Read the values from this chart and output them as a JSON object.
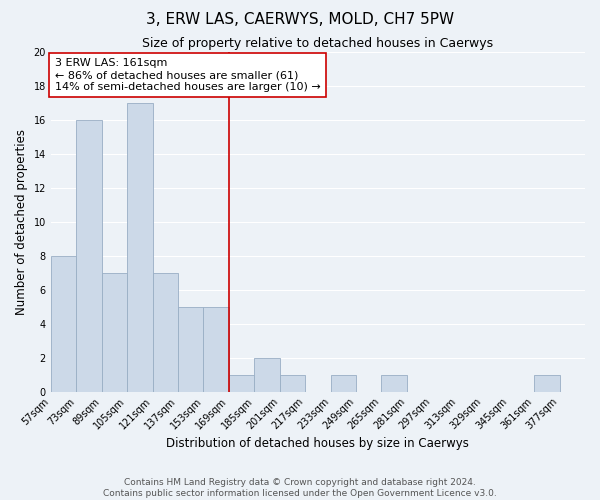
{
  "title": "3, ERW LAS, CAERWYS, MOLD, CH7 5PW",
  "subtitle": "Size of property relative to detached houses in Caerwys",
  "xlabel": "Distribution of detached houses by size in Caerwys",
  "ylabel": "Number of detached properties",
  "footer_line1": "Contains HM Land Registry data © Crown copyright and database right 2024.",
  "footer_line2": "Contains public sector information licensed under the Open Government Licence v3.0.",
  "bin_labels": [
    "57sqm",
    "73sqm",
    "89sqm",
    "105sqm",
    "121sqm",
    "137sqm",
    "153sqm",
    "169sqm",
    "185sqm",
    "201sqm",
    "217sqm",
    "233sqm",
    "249sqm",
    "265sqm",
    "281sqm",
    "297sqm",
    "313sqm",
    "329sqm",
    "345sqm",
    "361sqm",
    "377sqm"
  ],
  "bar_values": [
    8,
    16,
    7,
    17,
    7,
    5,
    5,
    1,
    2,
    1,
    0,
    1,
    0,
    1,
    0,
    0,
    0,
    0,
    0,
    1,
    0
  ],
  "bar_color": "#ccd9e8",
  "bar_edgecolor": "#99aec4",
  "ylim": [
    0,
    20
  ],
  "yticks": [
    0,
    2,
    4,
    6,
    8,
    10,
    12,
    14,
    16,
    18,
    20
  ],
  "vline_x_index": 7,
  "vline_color": "#cc0000",
  "annotation_text": "3 ERW LAS: 161sqm\n← 86% of detached houses are smaller (61)\n14% of semi-detached houses are larger (10) →",
  "annotation_box_color": "#ffffff",
  "annotation_box_edgecolor": "#cc0000",
  "background_color": "#edf2f7",
  "grid_color": "#ffffff",
  "title_fontsize": 11,
  "subtitle_fontsize": 9,
  "axis_label_fontsize": 8.5,
  "tick_fontsize": 7,
  "annotation_fontsize": 8,
  "footer_fontsize": 6.5
}
